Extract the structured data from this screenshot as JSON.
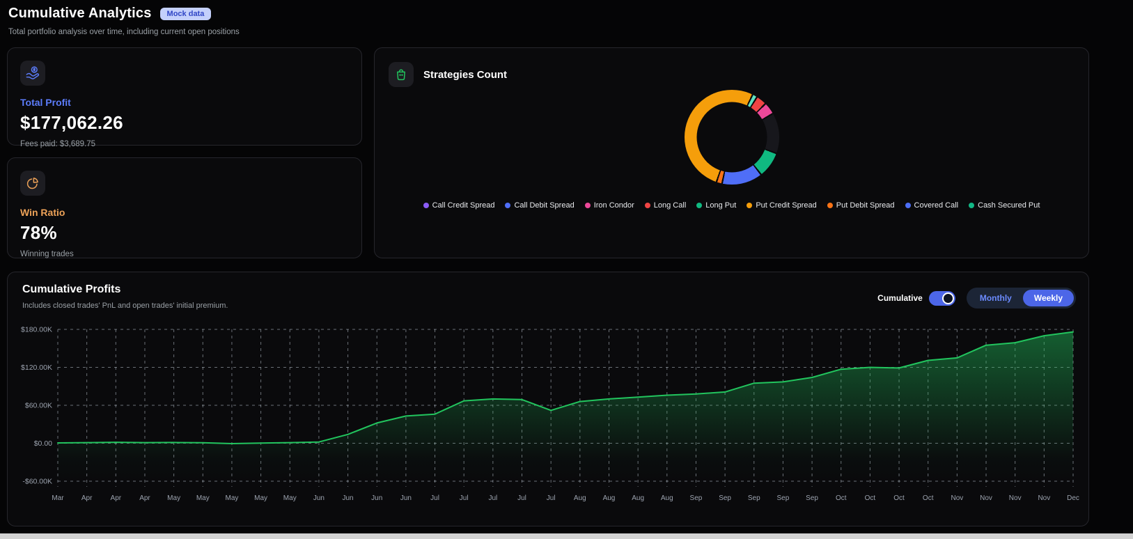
{
  "page": {
    "title": "Cumulative Analytics",
    "badge": "Mock data",
    "subtitle": "Total portfolio analysis over time, including current open positions"
  },
  "colors": {
    "accent_blue": "#5c7cfa",
    "accent_orange": "#eda258",
    "green_line": "#22c55e",
    "badge_bg": "#c4d0fb",
    "badge_text": "#2f45c5",
    "toggle_on": "#4c66e8"
  },
  "cards": {
    "total_profit": {
      "label": "Total Profit",
      "value": "$177,062.26",
      "sub": "Fees paid: $3,689.75",
      "accent": "#5c7cfa"
    },
    "win_ratio": {
      "label": "Win Ratio",
      "value": "78%",
      "sub": "Winning trades",
      "accent": "#eda258"
    },
    "strategies": {
      "title": "Strategies Count"
    }
  },
  "legend": [
    {
      "label": "Call Credit Spread",
      "color": "#8b5cf6"
    },
    {
      "label": "Call Debit Spread",
      "color": "#4f6ef7"
    },
    {
      "label": "Iron Condor",
      "color": "#ec4899"
    },
    {
      "label": "Long Call",
      "color": "#ef4444"
    },
    {
      "label": "Long Put",
      "color": "#10b981"
    },
    {
      "label": "Put Credit Spread",
      "color": "#f59e0b"
    },
    {
      "label": "Put Debit Spread",
      "color": "#f97316"
    },
    {
      "label": "Covered Call",
      "color": "#4c6ef5"
    },
    {
      "label": "Cash Secured Put",
      "color": "#12b886"
    }
  ],
  "profits": {
    "title": "Cumulative Profits",
    "subtitle": "Includes closed trades' PnL and open trades' initial premium.",
    "toggle_label": "Cumulative",
    "toggle_state": "on",
    "monthly_label": "Monthly",
    "weekly_label": "Weekly",
    "selected_period": "Weekly"
  },
  "chart_data": [
    {
      "type": "pie",
      "title": "Strategies Count",
      "donut": true,
      "start_angle_deg": 200,
      "gap_deg": 2,
      "segments": [
        {
          "label": "Put Credit Spread",
          "color": "#f59e0b",
          "deg": 185
        },
        {
          "label": "Cash Secured Put",
          "color": "#5fe0c0",
          "deg": 4
        },
        {
          "label": "Long Call",
          "color": "#ef4444",
          "deg": 11
        },
        {
          "label": "Iron Condor",
          "color": "#ec4899",
          "deg": 13
        },
        {
          "label": "Call Credit Spread",
          "color": "#17171c",
          "deg": 48
        },
        {
          "label": "Long Put",
          "color": "#10b981",
          "deg": 30
        },
        {
          "label": "Covered Call",
          "color": "#4f6ef7",
          "deg": 48
        },
        {
          "label": "Put Debit Spread",
          "color": "#f97316",
          "deg": 5
        }
      ],
      "legend_position": "bottom"
    },
    {
      "type": "area",
      "title": "Cumulative Profits",
      "x_labels": [
        "Mar",
        "Apr",
        "Apr",
        "Apr",
        "May",
        "May",
        "May",
        "May",
        "May",
        "Jun",
        "Jun",
        "Jun",
        "Jun",
        "Jul",
        "Jul",
        "Jul",
        "Jul",
        "Jul",
        "Aug",
        "Aug",
        "Aug",
        "Aug",
        "Sep",
        "Sep",
        "Sep",
        "Sep",
        "Sep",
        "Oct",
        "Oct",
        "Oct",
        "Oct",
        "Nov",
        "Nov",
        "Nov",
        "Nov",
        "Dec"
      ],
      "values_thousands": [
        0.5,
        1.0,
        1.5,
        1.0,
        1.2,
        0.8,
        -0.5,
        0.3,
        1.0,
        2.0,
        14,
        32,
        43,
        46,
        67,
        70,
        69,
        52,
        66,
        70,
        73,
        76,
        78,
        81,
        95,
        97,
        104,
        117,
        120,
        119,
        131,
        135,
        155,
        159,
        170,
        176
      ],
      "y_tick_labels": [
        "$180.00K",
        "$120.00K",
        "$60.00K",
        "$0.00",
        "-$60.00K"
      ],
      "y_tick_values": [
        180,
        120,
        60,
        0,
        -60
      ],
      "ylim": [
        -60,
        180
      ],
      "line_color": "#22c55e",
      "grid": "dashed",
      "legend_position": "none"
    }
  ]
}
